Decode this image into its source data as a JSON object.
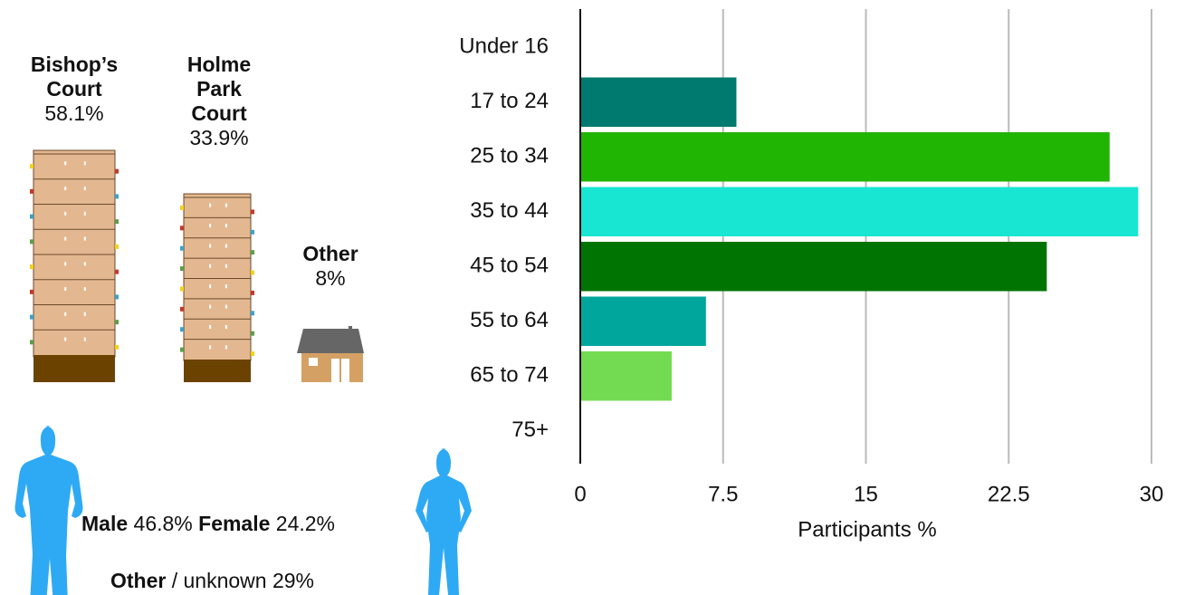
{
  "buildings": [
    {
      "name": "Bishop’s Court",
      "share": "58.1%"
    },
    {
      "name": "Holme Park Court",
      "share": "33.9%"
    },
    {
      "name": "Other",
      "share": "8%"
    }
  ],
  "gender": {
    "male_label": "Male",
    "male": "46.8%",
    "female_label": "Female",
    "female": "24.2%",
    "other_label": "Other",
    "other": "/ unknown 29%"
  },
  "chart_data": {
    "type": "bar",
    "orientation": "horizontal",
    "xlabel": "Participants %",
    "categories": [
      "Under 16",
      "17 to 24",
      "25 to 34",
      "35 to 44",
      "45 to 54",
      "55 to 64",
      "65 to 74",
      "75+"
    ],
    "values": [
      0,
      8.2,
      27.8,
      29.3,
      24.5,
      6.6,
      4.8,
      0
    ],
    "colors": [
      "#1e7a72",
      "#00796f",
      "#20b403",
      "#18e6d2",
      "#007402",
      "#00a69b",
      "#73db51",
      "#73db51"
    ],
    "xlim": [
      0,
      30
    ],
    "xticks": [
      0,
      7.5,
      15,
      22.5,
      30
    ],
    "grid": true
  }
}
